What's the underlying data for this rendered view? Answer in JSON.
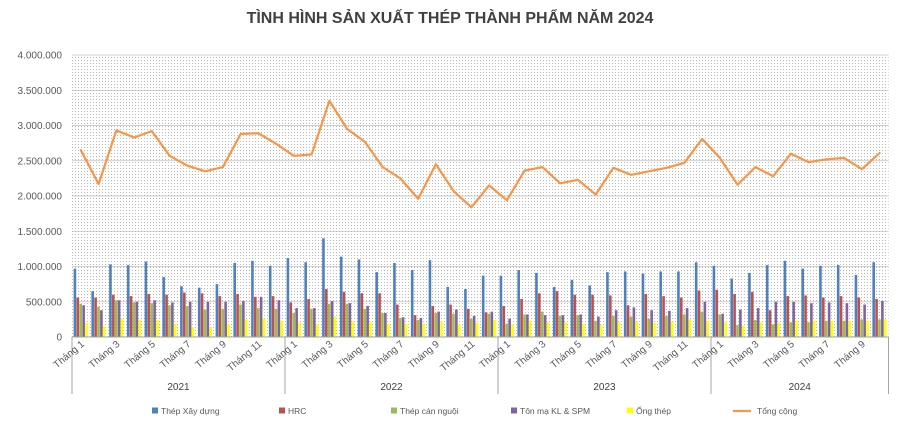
{
  "chart_data": {
    "type": "bar+line",
    "title": "TÌNH HÌNH SẢN XUẤT THÉP THÀNH PHẨM NĂM 2024",
    "xlabel": "",
    "ylabel": "",
    "grid": true,
    "legend": "bottom",
    "y_axis": {
      "ylim": [
        0,
        4000000
      ],
      "ticks": [
        0,
        500000,
        1000000,
        1500000,
        2000000,
        2500000,
        3000000,
        3500000,
        4000000
      ],
      "tick_labels": [
        "0",
        "500.000",
        "1.000.000",
        "1.500.000",
        "2.000.000",
        "2.500.000",
        "3.000.000",
        "3.500.000",
        "4.000.000"
      ]
    },
    "x_groups": [
      {
        "label": "2021",
        "months": [
          1,
          2,
          3,
          4,
          5,
          6,
          7,
          8,
          9,
          10,
          11,
          12
        ],
        "ticks": [
          {
            "month": 1,
            "label": "Tháng 1"
          },
          {
            "month": 3,
            "label": "Tháng 3"
          },
          {
            "month": 5,
            "label": "Tháng 5"
          },
          {
            "month": 7,
            "label": "Tháng 7"
          },
          {
            "month": 9,
            "label": "Tháng 9"
          },
          {
            "month": 11,
            "label": "Tháng 11"
          }
        ]
      },
      {
        "label": "2022",
        "months": [
          1,
          2,
          3,
          4,
          5,
          6,
          7,
          8,
          9,
          10,
          11,
          12
        ],
        "ticks": [
          {
            "month": 1,
            "label": "Tháng 1"
          },
          {
            "month": 3,
            "label": "Tháng 3"
          },
          {
            "month": 5,
            "label": "Tháng 5"
          },
          {
            "month": 7,
            "label": "Tháng 7"
          },
          {
            "month": 9,
            "label": "Tháng 9"
          },
          {
            "month": 11,
            "label": "Tháng 11"
          }
        ]
      },
      {
        "label": "2023",
        "months": [
          1,
          2,
          3,
          4,
          5,
          6,
          7,
          8,
          9,
          10,
          11,
          12
        ],
        "ticks": [
          {
            "month": 1,
            "label": "Tháng 1"
          },
          {
            "month": 3,
            "label": "Tháng 3"
          },
          {
            "month": 5,
            "label": "Tháng 5"
          },
          {
            "month": 7,
            "label": "Tháng 7"
          },
          {
            "month": 9,
            "label": "Tháng 9"
          },
          {
            "month": 11,
            "label": "Tháng 11"
          }
        ]
      },
      {
        "label": "2024",
        "months": [
          1,
          2,
          3,
          4,
          5,
          6,
          7,
          8,
          9,
          10
        ],
        "ticks": [
          {
            "month": 1,
            "label": "Tháng 1"
          },
          {
            "month": 3,
            "label": "Tháng 3"
          },
          {
            "month": 5,
            "label": "Tháng 5"
          },
          {
            "month": 7,
            "label": "Tháng 7"
          },
          {
            "month": 9,
            "label": "Tháng 9"
          }
        ]
      }
    ],
    "series": [
      {
        "name": "Thép Xây dựng",
        "type": "bar",
        "color": "#4F81BD",
        "values": [
          [
            970000,
            650000,
            1030000,
            1020000,
            1070000,
            850000,
            720000,
            700000,
            750000,
            1050000,
            1080000,
            1010000
          ],
          [
            1120000,
            1060000,
            1400000,
            1140000,
            1100000,
            920000,
            1050000,
            950000,
            1090000,
            710000,
            680000,
            870000
          ],
          [
            870000,
            950000,
            910000,
            710000,
            810000,
            730000,
            920000,
            930000,
            900000,
            930000,
            930000,
            1060000
          ],
          [
            1010000,
            830000,
            910000,
            1020000,
            1080000,
            970000,
            1010000,
            1020000,
            880000,
            1060000
          ]
        ]
      },
      {
        "name": "HRC",
        "type": "bar",
        "color": "#C0504D",
        "values": [
          [
            560000,
            560000,
            600000,
            580000,
            610000,
            600000,
            630000,
            620000,
            580000,
            610000,
            570000,
            580000
          ],
          [
            490000,
            540000,
            680000,
            640000,
            620000,
            620000,
            460000,
            310000,
            440000,
            460000,
            400000,
            350000
          ],
          [
            440000,
            540000,
            620000,
            650000,
            600000,
            600000,
            590000,
            450000,
            610000,
            580000,
            560000,
            660000
          ],
          [
            670000,
            610000,
            640000,
            380000,
            580000,
            590000,
            560000,
            580000,
            560000,
            540000
          ]
        ]
      },
      {
        "name": "Thép cán nguội",
        "type": "bar",
        "color": "#9BBB59",
        "values": [
          [
            470000,
            430000,
            520000,
            490000,
            480000,
            450000,
            440000,
            390000,
            400000,
            460000,
            410000,
            400000
          ],
          [
            340000,
            400000,
            470000,
            470000,
            400000,
            340000,
            270000,
            240000,
            340000,
            330000,
            260000,
            330000
          ],
          [
            190000,
            320000,
            360000,
            300000,
            310000,
            230000,
            300000,
            290000,
            260000,
            300000,
            320000,
            360000
          ],
          [
            320000,
            170000,
            240000,
            180000,
            210000,
            210000,
            230000,
            230000,
            250000,
            250000
          ]
        ]
      },
      {
        "name": "Tôn mạ KL & SPM",
        "type": "bar",
        "color": "#8064A2",
        "values": [
          [
            450000,
            380000,
            520000,
            500000,
            520000,
            490000,
            500000,
            500000,
            500000,
            510000,
            570000,
            520000
          ],
          [
            410000,
            410000,
            510000,
            480000,
            440000,
            340000,
            280000,
            270000,
            360000,
            390000,
            300000,
            360000
          ],
          [
            260000,
            320000,
            310000,
            310000,
            320000,
            290000,
            380000,
            420000,
            380000,
            370000,
            410000,
            500000
          ],
          [
            330000,
            390000,
            410000,
            500000,
            500000,
            480000,
            490000,
            480000,
            460000,
            510000
          ]
        ]
      },
      {
        "name": "Ống thép",
        "type": "bar",
        "color": "#FFFF00",
        "values": [
          [
            200000,
            150000,
            260000,
            240000,
            240000,
            180000,
            140000,
            140000,
            180000,
            250000,
            260000,
            230000
          ],
          [
            210000,
            180000,
            290000,
            220000,
            210000,
            190000,
            190000,
            190000,
            220000,
            180000,
            200000,
            240000
          ],
          [
            180000,
            230000,
            210000,
            210000,
            190000,
            170000,
            210000,
            210000,
            200000,
            220000,
            250000,
            230000
          ],
          [
            210000,
            160000,
            210000,
            200000,
            230000,
            230000,
            230000,
            230000,
            230000,
            250000
          ]
        ]
      },
      {
        "name": "Tổng cộng",
        "type": "line",
        "color": "#F79646",
        "values": [
          [
            2650000,
            2170000,
            2930000,
            2830000,
            2920000,
            2570000,
            2430000,
            2350000,
            2410000,
            2880000,
            2890000,
            2740000
          ],
          [
            2570000,
            2590000,
            3350000,
            2950000,
            2770000,
            2410000,
            2250000,
            1960000,
            2450000,
            2070000,
            1840000,
            2150000
          ],
          [
            1940000,
            2360000,
            2410000,
            2180000,
            2230000,
            2020000,
            2400000,
            2300000,
            2350000,
            2400000,
            2470000,
            2810000
          ],
          [
            2540000,
            2160000,
            2410000,
            2280000,
            2600000,
            2480000,
            2520000,
            2540000,
            2380000,
            2610000
          ]
        ]
      }
    ]
  }
}
